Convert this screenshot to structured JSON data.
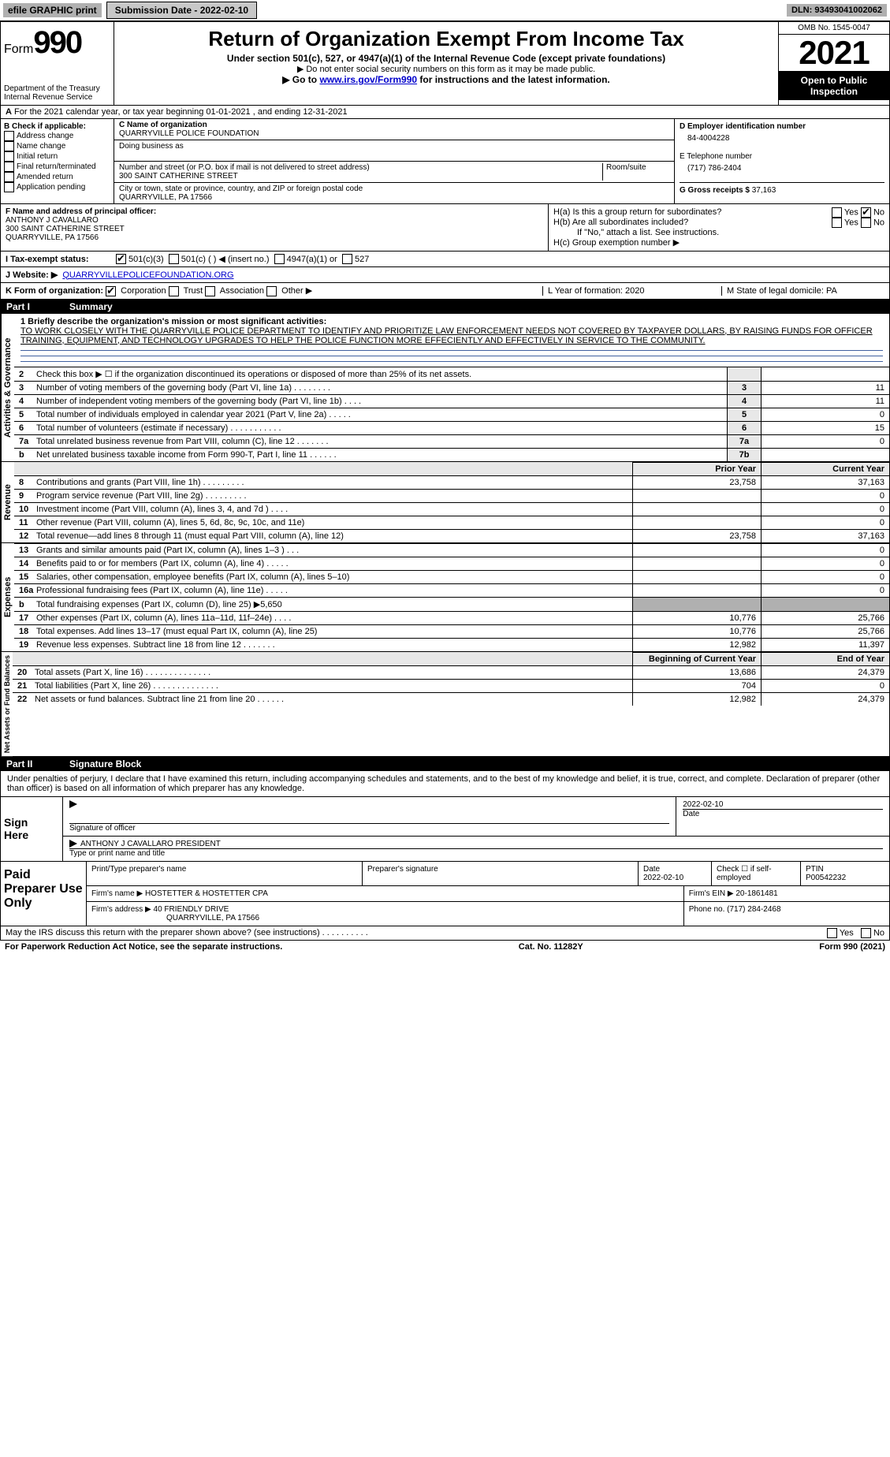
{
  "top": {
    "efile": "efile GRAPHIC print",
    "submission": "Submission Date - 2022-02-10",
    "dln": "DLN: 93493041002062"
  },
  "header": {
    "form_prefix": "Form",
    "form_num": "990",
    "title": "Return of Organization Exempt From Income Tax",
    "sub1": "Under section 501(c), 527, or 4947(a)(1) of the Internal Revenue Code (except private foundations)",
    "sub2": "▶ Do not enter social security numbers on this form as it may be made public.",
    "sub3_pre": "▶ Go to ",
    "sub3_link": "www.irs.gov/Form990",
    "sub3_post": " for instructions and the latest information.",
    "dept": "Department of the Treasury",
    "irs": "Internal Revenue Service",
    "omb": "OMB No. 1545-0047",
    "year": "2021",
    "open": "Open to Public Inspection"
  },
  "row_a": {
    "label_a": "A",
    "text": "For the 2021 calendar year, or tax year beginning 01-01-2021     , and ending 12-31-2021"
  },
  "col_b": {
    "label": "B Check if applicable:",
    "opts": [
      "Address change",
      "Name change",
      "Initial return",
      "Final return/terminated",
      "Amended return",
      "Application pending"
    ]
  },
  "col_c": {
    "c_label": "C Name of organization",
    "org_name": "QUARRYVILLE POLICE FOUNDATION",
    "dba_label": "Doing business as",
    "addr_label": "Number and street (or P.O. box if mail is not delivered to street address)",
    "room_label": "Room/suite",
    "addr": "300 SAINT CATHERINE STREET",
    "city_label": "City or town, state or province, country, and ZIP or foreign postal code",
    "city": "QUARRYVILLE, PA  17566"
  },
  "col_d": {
    "d_label": "D Employer identification number",
    "ein": "84-4004228",
    "e_label": "E Telephone number",
    "phone": "(717) 786-2404",
    "g_label": "G Gross receipts $",
    "gross": "37,163"
  },
  "row_f": {
    "f_label": "F  Name and address of principal officer:",
    "name": "ANTHONY J CAVALLARO",
    "addr1": "300 SAINT CATHERINE STREET",
    "addr2": "QUARRYVILLE, PA  17566"
  },
  "row_h": {
    "ha": "H(a)  Is this a group return for subordinates?",
    "hb": "H(b)  Are all subordinates included?",
    "hb_note": "If \"No,\" attach a list. See instructions.",
    "hc": "H(c)  Group exemption number ▶",
    "yes": "Yes",
    "no": "No"
  },
  "row_i": {
    "label": "I  Tax-exempt status:",
    "o1": "501(c)(3)",
    "o2": "501(c) (   ) ◀ (insert no.)",
    "o3": "4947(a)(1) or",
    "o4": "527"
  },
  "row_j": {
    "label": "J  Website: ▶",
    "url": "QUARRYVILLEPOLICEFOUNDATION.ORG"
  },
  "row_k": {
    "label": "K Form of organization:",
    "o1": "Corporation",
    "o2": "Trust",
    "o3": "Association",
    "o4": "Other ▶"
  },
  "row_l": {
    "l": "L Year of formation: 2020",
    "m": "M State of legal domicile: PA"
  },
  "part1": {
    "pn": "Part I",
    "title": "Summary"
  },
  "mission": {
    "q1": "1  Briefly describe the organization's mission or most significant activities:",
    "text": "TO WORK CLOSELY WITH THE QUARRYVILLE POLICE DEPARTMENT TO IDENTIFY AND PRIORITIZE LAW ENFORCEMENT NEEDS NOT COVERED BY TAXPAYER DOLLARS, BY RAISING FUNDS FOR OFFICER TRAINING, EQUIPMENT, AND TECHNOLOGY UPGRADES TO HELP THE POLICE FUNCTION MORE EFFECIENTLY AND EFFECTIVELY IN SERVICE TO THE COMMUNITY."
  },
  "gov_rows": [
    {
      "n": "2",
      "desc": "Check this box ▶ ☐  if the organization discontinued its operations or disposed of more than 25% of its net assets.",
      "nc": "",
      "v": ""
    },
    {
      "n": "3",
      "desc": "Number of voting members of the governing body (Part VI, line 1a)   .    .    .    .    .    .    .    .",
      "nc": "3",
      "v": "11"
    },
    {
      "n": "4",
      "desc": "Number of independent voting members of the governing body (Part VI, line 1b)   .    .    .    .",
      "nc": "4",
      "v": "11"
    },
    {
      "n": "5",
      "desc": "Total number of individuals employed in calendar year 2021 (Part V, line 2a)   .    .    .    .    .",
      "nc": "5",
      "v": "0"
    },
    {
      "n": "6",
      "desc": "Total number of volunteers (estimate if necessary)   .    .    .    .    .    .    .    .    .    .    .",
      "nc": "6",
      "v": "15"
    },
    {
      "n": "7a",
      "desc": "Total unrelated business revenue from Part VIII, column (C), line 12   .    .    .    .    .    .    .",
      "nc": "7a",
      "v": "0"
    },
    {
      "n": "b",
      "desc": "Net unrelated business taxable income from Form 990-T, Part I, line 11   .    .    .    .    .    .",
      "nc": "7b",
      "v": ""
    }
  ],
  "col_headers": {
    "prior": "Prior Year",
    "current": "Current Year"
  },
  "rev_rows": [
    {
      "n": "8",
      "desc": "Contributions and grants (Part VIII, line 1h)   .    .    .    .    .    .    .    .    .",
      "p": "23,758",
      "c": "37,163"
    },
    {
      "n": "9",
      "desc": "Program service revenue (Part VIII, line 2g)   .    .    .    .    .    .    .    .    .",
      "p": "",
      "c": "0"
    },
    {
      "n": "10",
      "desc": "Investment income (Part VIII, column (A), lines 3, 4, and 7d )   .    .    .    .",
      "p": "",
      "c": "0"
    },
    {
      "n": "11",
      "desc": "Other revenue (Part VIII, column (A), lines 5, 6d, 8c, 9c, 10c, and 11e)",
      "p": "",
      "c": "0"
    },
    {
      "n": "12",
      "desc": "Total revenue—add lines 8 through 11 (must equal Part VIII, column (A), line 12)",
      "p": "23,758",
      "c": "37,163"
    }
  ],
  "exp_rows": [
    {
      "n": "13",
      "desc": "Grants and similar amounts paid (Part IX, column (A), lines 1–3 )   .    .    .",
      "p": "",
      "c": "0"
    },
    {
      "n": "14",
      "desc": "Benefits paid to or for members (Part IX, column (A), line 4)   .    .    .    .    .",
      "p": "",
      "c": "0"
    },
    {
      "n": "15",
      "desc": "Salaries, other compensation, employee benefits (Part IX, column (A), lines 5–10)",
      "p": "",
      "c": "0"
    },
    {
      "n": "16a",
      "desc": "Professional fundraising fees (Part IX, column (A), line 11e)   .    .    .    .    .",
      "p": "",
      "c": "0"
    },
    {
      "n": "b",
      "desc": "Total fundraising expenses (Part IX, column (D), line 25) ▶5,650",
      "p": "GRAY",
      "c": "GRAY"
    },
    {
      "n": "17",
      "desc": "Other expenses (Part IX, column (A), lines 11a–11d, 11f–24e)   .    .    .    .",
      "p": "10,776",
      "c": "25,766"
    },
    {
      "n": "18",
      "desc": "Total expenses. Add lines 13–17 (must equal Part IX, column (A), line 25)",
      "p": "10,776",
      "c": "25,766"
    },
    {
      "n": "19",
      "desc": "Revenue less expenses. Subtract line 18 from line 12   .    .    .    .    .    .    .",
      "p": "12,982",
      "c": "11,397"
    }
  ],
  "net_headers": {
    "begin": "Beginning of Current Year",
    "end": "End of Year"
  },
  "net_rows": [
    {
      "n": "20",
      "desc": "Total assets (Part X, line 16)   .    .    .    .    .    .    .    .    .    .    .    .    .    .",
      "p": "13,686",
      "c": "24,379"
    },
    {
      "n": "21",
      "desc": "Total liabilities (Part X, line 26)   .    .    .    .    .    .    .    .    .    .    .    .    .    .",
      "p": "704",
      "c": "0"
    },
    {
      "n": "22",
      "desc": "Net assets or fund balances. Subtract line 21 from line 20   .    .    .    .    .    .",
      "p": "12,982",
      "c": "24,379"
    }
  ],
  "vert_labels": {
    "gov": "Activities & Governance",
    "rev": "Revenue",
    "exp": "Expenses",
    "net": "Net Assets or Fund Balances"
  },
  "part2": {
    "pn": "Part II",
    "title": "Signature Block"
  },
  "sig_para": "Under penalties of perjury, I declare that I have examined this return, including accompanying schedules and statements, and to the best of my knowledge and belief, it is true, correct, and complete. Declaration of preparer (other than officer) is based on all information of which preparer has any knowledge.",
  "sign": {
    "left1": "Sign",
    "left2": "Here",
    "sig_of": "Signature of officer",
    "date": "Date",
    "sig_date": "2022-02-10",
    "name": "ANTHONY J CAVALLARO  PRESIDENT",
    "type_label": "Type or print name and title"
  },
  "prep": {
    "left": "Paid Preparer Use Only",
    "h1": "Print/Type preparer's name",
    "h2": "Preparer's signature",
    "h3": "Date",
    "h3v": "2022-02-10",
    "h4": "Check ☐ if self-employed",
    "h5": "PTIN",
    "h5v": "P00542232",
    "firm_label": "Firm's name    ▶",
    "firm": "HOSTETTER & HOSTETTER CPA",
    "ein_label": "Firm's EIN ▶",
    "ein": "20-1861481",
    "addr_label": "Firm's address ▶",
    "addr1": "40 FRIENDLY DRIVE",
    "addr2": "QUARRYVILLE, PA  17566",
    "phone_label": "Phone no.",
    "phone": "(717) 284-2468"
  },
  "footer": {
    "q": "May the IRS discuss this return with the preparer shown above? (see instructions)   .    .    .    .    .    .    .    .    .    .",
    "yes": "Yes",
    "no": "No"
  },
  "bottom": {
    "left": "For Paperwork Reduction Act Notice, see the separate instructions.",
    "mid": "Cat. No. 11282Y",
    "right": "Form 990 (2021)"
  }
}
